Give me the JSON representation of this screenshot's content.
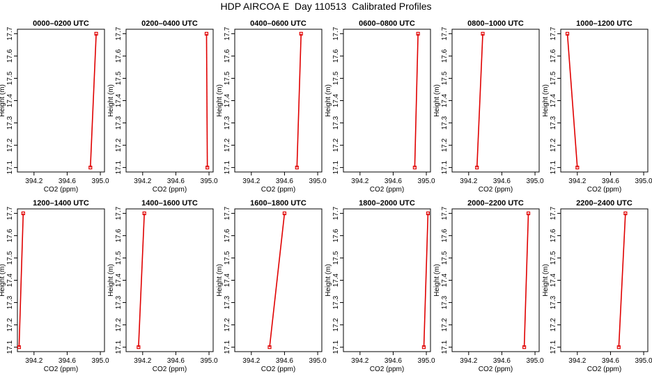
{
  "figure_title": "HDP AIRCOA E  Day 110513  Calibrated Profiles",
  "chart_data": [
    {
      "type": "line",
      "title": "0000–0200 UTC",
      "xlabel": "CO2 (ppm)",
      "ylabel": "Height (m)",
      "xlim": [
        394.0,
        395.05
      ],
      "ylim": [
        17.08,
        17.72
      ],
      "xticks": [
        "394.2",
        "394.6",
        "395.0"
      ],
      "yticks": [
        "17.1",
        "17.2",
        "17.3",
        "17.4",
        "17.5",
        "17.6",
        "17.7"
      ],
      "x": [
        394.88,
        394.95
      ],
      "y": [
        17.1,
        17.7
      ]
    },
    {
      "type": "line",
      "title": "0200–0400 UTC",
      "xlabel": "CO2 (ppm)",
      "ylabel": "Height (m)",
      "xlim": [
        394.0,
        395.05
      ],
      "ylim": [
        17.08,
        17.72
      ],
      "xticks": [
        "394.2",
        "394.6",
        "395.0"
      ],
      "yticks": [
        "17.1",
        "17.2",
        "17.3",
        "17.4",
        "17.5",
        "17.6",
        "17.7"
      ],
      "x": [
        394.98,
        394.97
      ],
      "y": [
        17.1,
        17.7
      ]
    },
    {
      "type": "line",
      "title": "0400–0600 UTC",
      "xlabel": "CO2 (ppm)",
      "ylabel": "Height (m)",
      "xlim": [
        394.0,
        395.05
      ],
      "ylim": [
        17.08,
        17.72
      ],
      "xticks": [
        "394.2",
        "394.6",
        "395.0"
      ],
      "yticks": [
        "17.1",
        "17.2",
        "17.3",
        "17.4",
        "17.5",
        "17.6",
        "17.7"
      ],
      "x": [
        394.75,
        394.8
      ],
      "y": [
        17.1,
        17.7
      ]
    },
    {
      "type": "line",
      "title": "0600–0800 UTC",
      "xlabel": "CO2 (ppm)",
      "ylabel": "Height (m)",
      "xlim": [
        394.0,
        395.05
      ],
      "ylim": [
        17.08,
        17.72
      ],
      "xticks": [
        "394.2",
        "394.6",
        "395.0"
      ],
      "yticks": [
        "17.1",
        "17.2",
        "17.3",
        "17.4",
        "17.5",
        "17.6",
        "17.7"
      ],
      "x": [
        394.86,
        394.9
      ],
      "y": [
        17.1,
        17.7
      ]
    },
    {
      "type": "line",
      "title": "0800–1000 UTC",
      "xlabel": "CO2 (ppm)",
      "ylabel": "Height (m)",
      "xlim": [
        394.0,
        395.05
      ],
      "ylim": [
        17.08,
        17.72
      ],
      "xticks": [
        "394.2",
        "394.6",
        "395.0"
      ],
      "yticks": [
        "17.1",
        "17.2",
        "17.3",
        "17.4",
        "17.5",
        "17.6",
        "17.7"
      ],
      "x": [
        394.3,
        394.37
      ],
      "y": [
        17.1,
        17.7
      ]
    },
    {
      "type": "line",
      "title": "1000–1200 UTC",
      "xlabel": "CO2 (ppm)",
      "ylabel": "Height (m)",
      "xlim": [
        394.0,
        395.05
      ],
      "ylim": [
        17.08,
        17.72
      ],
      "xticks": [
        "394.2",
        "394.6",
        "395.0"
      ],
      "yticks": [
        "17.1",
        "17.2",
        "17.3",
        "17.4",
        "17.5",
        "17.6",
        "17.7"
      ],
      "x": [
        394.2,
        394.08
      ],
      "y": [
        17.1,
        17.7
      ]
    },
    {
      "type": "line",
      "title": "1200–1400 UTC",
      "xlabel": "CO2 (ppm)",
      "ylabel": "Height (m)",
      "xlim": [
        394.0,
        395.05
      ],
      "ylim": [
        17.08,
        17.72
      ],
      "xticks": [
        "394.2",
        "394.6",
        "395.0"
      ],
      "yticks": [
        "17.1",
        "17.2",
        "17.3",
        "17.4",
        "17.5",
        "17.6",
        "17.7"
      ],
      "x": [
        394.02,
        394.07
      ],
      "y": [
        17.1,
        17.7
      ]
    },
    {
      "type": "line",
      "title": "1400–1600 UTC",
      "xlabel": "CO2 (ppm)",
      "ylabel": "Height (m)",
      "xlim": [
        394.0,
        395.05
      ],
      "ylim": [
        17.08,
        17.72
      ],
      "xticks": [
        "394.2",
        "394.6",
        "395.0"
      ],
      "yticks": [
        "17.1",
        "17.2",
        "17.3",
        "17.4",
        "17.5",
        "17.6",
        "17.7"
      ],
      "x": [
        394.15,
        394.22
      ],
      "y": [
        17.1,
        17.7
      ]
    },
    {
      "type": "line",
      "title": "1600–1800 UTC",
      "xlabel": "CO2 (ppm)",
      "ylabel": "Height (m)",
      "xlim": [
        394.0,
        395.05
      ],
      "ylim": [
        17.08,
        17.72
      ],
      "xticks": [
        "394.2",
        "394.6",
        "395.0"
      ],
      "yticks": [
        "17.1",
        "17.2",
        "17.3",
        "17.4",
        "17.5",
        "17.6",
        "17.7"
      ],
      "x": [
        394.42,
        394.6
      ],
      "y": [
        17.1,
        17.7
      ]
    },
    {
      "type": "line",
      "title": "1800–2000 UTC",
      "xlabel": "CO2 (ppm)",
      "ylabel": "Height (m)",
      "xlim": [
        394.0,
        395.05
      ],
      "ylim": [
        17.08,
        17.72
      ],
      "xticks": [
        "394.2",
        "394.6",
        "395.0"
      ],
      "yticks": [
        "17.1",
        "17.2",
        "17.3",
        "17.4",
        "17.5",
        "17.6",
        "17.7"
      ],
      "x": [
        394.97,
        395.02
      ],
      "y": [
        17.1,
        17.7
      ]
    },
    {
      "type": "line",
      "title": "2000–2200 UTC",
      "xlabel": "CO2 (ppm)",
      "ylabel": "Height (m)",
      "xlim": [
        394.0,
        395.05
      ],
      "ylim": [
        17.08,
        17.72
      ],
      "xticks": [
        "394.2",
        "394.6",
        "395.0"
      ],
      "yticks": [
        "17.1",
        "17.2",
        "17.3",
        "17.4",
        "17.5",
        "17.6",
        "17.7"
      ],
      "x": [
        394.87,
        394.92
      ],
      "y": [
        17.1,
        17.7
      ]
    },
    {
      "type": "line",
      "title": "2200–2400 UTC",
      "xlabel": "CO2 (ppm)",
      "ylabel": "Height (m)",
      "xlim": [
        394.0,
        395.05
      ],
      "ylim": [
        17.08,
        17.72
      ],
      "xticks": [
        "394.2",
        "394.6",
        "395.0"
      ],
      "yticks": [
        "17.1",
        "17.2",
        "17.3",
        "17.4",
        "17.5",
        "17.6",
        "17.7"
      ],
      "x": [
        394.7,
        394.78
      ],
      "y": [
        17.1,
        17.7
      ]
    }
  ]
}
